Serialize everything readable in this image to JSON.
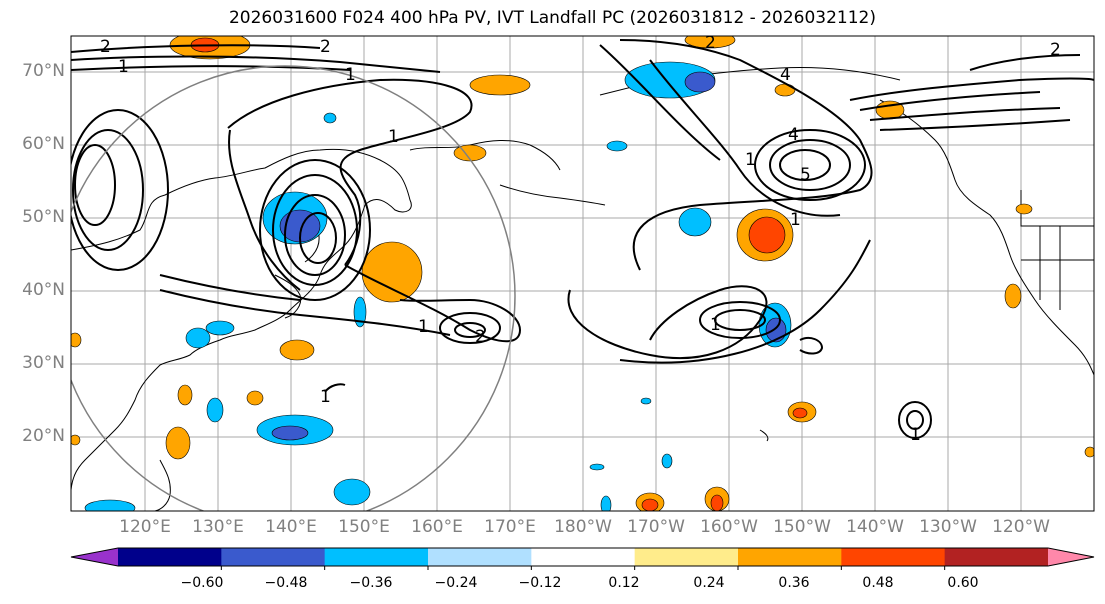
{
  "title": "2026031600 F024 400 hPa PV, IVT Landfall PC (2026031812 - 2026032112)",
  "lat_labels": [
    "70°N",
    "60°N",
    "50°N",
    "40°N",
    "30°N",
    "20°N"
  ],
  "lon_labels": [
    "120°E",
    "130°E",
    "140°E",
    "150°E",
    "160°E",
    "170°E",
    "180°W",
    "170°W",
    "160°W",
    "150°W",
    "140°W",
    "130°W",
    "120°W"
  ],
  "colorbar": {
    "ticks": [
      "−0.60",
      "−0.48",
      "−0.36",
      "−0.24",
      "−0.12",
      "0.12",
      "0.24",
      "0.36",
      "0.48",
      "0.60"
    ],
    "colors": [
      "#9932cc",
      "#00008b",
      "#3a5acd",
      "#00bfff",
      "#b0e0ff",
      "#ffffff",
      "#ffec8b",
      "#ffa500",
      "#ff4500",
      "#b22222",
      "#ff88aa"
    ]
  },
  "contour_labels": [
    "1",
    "2",
    "4",
    "5"
  ]
}
